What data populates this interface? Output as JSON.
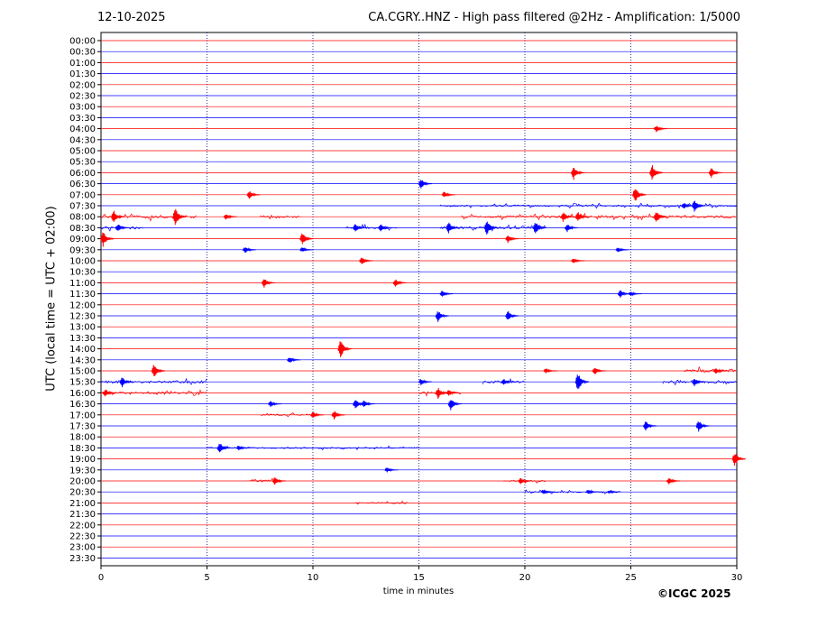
{
  "header": {
    "date": "12-10-2025",
    "title": "CA.CGRY..HNZ - High pass filtered @2Hz - Amplification: 1/5000"
  },
  "footer": {
    "copyright": "©ICGC 2025"
  },
  "colors": {
    "red": "#ff0000",
    "blue": "#0000ff",
    "grid": "#000080"
  },
  "chart_data": {
    "type": "line",
    "title": "CA.CGRY..HNZ - High pass filtered @2Hz - Amplification: 1/5000",
    "xlabel": "time in minutes",
    "ylabel": "UTC (local time = UTC + 02:00)",
    "xlim": [
      0,
      30
    ],
    "xticks": [
      0,
      5,
      10,
      15,
      20,
      25,
      30
    ],
    "vertical_gridlines_dotted_at": [
      5,
      10,
      15,
      20,
      25
    ],
    "trace_colors_alternate": [
      "red",
      "blue"
    ],
    "rows": [
      "00:00",
      "00:30",
      "01:00",
      "01:30",
      "02:00",
      "02:30",
      "03:00",
      "03:30",
      "04:00",
      "04:30",
      "05:00",
      "05:30",
      "06:00",
      "06:30",
      "07:00",
      "07:30",
      "08:00",
      "08:30",
      "09:00",
      "09:30",
      "10:00",
      "10:30",
      "11:00",
      "11:30",
      "12:00",
      "12:30",
      "13:00",
      "13:30",
      "14:00",
      "14:30",
      "15:00",
      "15:30",
      "16:00",
      "16:30",
      "17:00",
      "17:30",
      "18:00",
      "18:30",
      "19:00",
      "19:30",
      "20:00",
      "20:30",
      "21:00",
      "21:30",
      "22:00",
      "22:30",
      "23:00",
      "23:30"
    ],
    "events": [
      {
        "row": "04:00",
        "t": 26.2,
        "amp": 4
      },
      {
        "row": "06:00",
        "t": 22.3,
        "amp": 8
      },
      {
        "row": "06:00",
        "t": 26.0,
        "amp": 10
      },
      {
        "row": "06:00",
        "t": 28.8,
        "amp": 6
      },
      {
        "row": "06:30",
        "t": 15.1,
        "amp": 6
      },
      {
        "row": "07:00",
        "t": 7.0,
        "amp": 5
      },
      {
        "row": "07:00",
        "t": 16.2,
        "amp": 4
      },
      {
        "row": "07:00",
        "t": 25.2,
        "amp": 10
      },
      {
        "row": "07:30",
        "t": 27.5,
        "amp": 4
      },
      {
        "row": "07:30",
        "t": 28.0,
        "amp": 8
      },
      {
        "row": "08:00",
        "t": 0.6,
        "amp": 8
      },
      {
        "row": "08:00",
        "t": 3.5,
        "amp": 12
      },
      {
        "row": "08:00",
        "t": 5.9,
        "amp": 4
      },
      {
        "row": "08:00",
        "t": 21.8,
        "amp": 6
      },
      {
        "row": "08:00",
        "t": 22.5,
        "amp": 6
      },
      {
        "row": "08:00",
        "t": 26.2,
        "amp": 8
      },
      {
        "row": "08:30",
        "t": 0.8,
        "amp": 5
      },
      {
        "row": "08:30",
        "t": 12.0,
        "amp": 5
      },
      {
        "row": "08:30",
        "t": 13.2,
        "amp": 5
      },
      {
        "row": "08:30",
        "t": 16.4,
        "amp": 7
      },
      {
        "row": "08:30",
        "t": 18.2,
        "amp": 10
      },
      {
        "row": "08:30",
        "t": 20.5,
        "amp": 8
      },
      {
        "row": "08:30",
        "t": 22.0,
        "amp": 5
      },
      {
        "row": "09:00",
        "t": 0.1,
        "amp": 9
      },
      {
        "row": "09:00",
        "t": 9.5,
        "amp": 8
      },
      {
        "row": "09:00",
        "t": 19.2,
        "amp": 5
      },
      {
        "row": "09:30",
        "t": 6.8,
        "amp": 4
      },
      {
        "row": "09:30",
        "t": 9.5,
        "amp": 3
      },
      {
        "row": "09:30",
        "t": 24.4,
        "amp": 3
      },
      {
        "row": "10:00",
        "t": 12.3,
        "amp": 5
      },
      {
        "row": "10:00",
        "t": 22.3,
        "amp": 3
      },
      {
        "row": "11:00",
        "t": 7.7,
        "amp": 6
      },
      {
        "row": "11:00",
        "t": 13.9,
        "amp": 5
      },
      {
        "row": "11:30",
        "t": 16.1,
        "amp": 4
      },
      {
        "row": "11:30",
        "t": 24.5,
        "amp": 5
      },
      {
        "row": "11:30",
        "t": 25.0,
        "amp": 3
      },
      {
        "row": "12:30",
        "t": 15.9,
        "amp": 7
      },
      {
        "row": "12:30",
        "t": 19.2,
        "amp": 6
      },
      {
        "row": "14:00",
        "t": 11.3,
        "amp": 11
      },
      {
        "row": "14:30",
        "t": 8.9,
        "amp": 4
      },
      {
        "row": "15:00",
        "t": 2.5,
        "amp": 9
      },
      {
        "row": "15:00",
        "t": 21.0,
        "amp": 3
      },
      {
        "row": "15:00",
        "t": 23.3,
        "amp": 5
      },
      {
        "row": "15:00",
        "t": 29.0,
        "amp": 4
      },
      {
        "row": "15:30",
        "t": 1.0,
        "amp": 6
      },
      {
        "row": "15:30",
        "t": 15.1,
        "amp": 4
      },
      {
        "row": "15:30",
        "t": 19.0,
        "amp": 4
      },
      {
        "row": "15:30",
        "t": 22.5,
        "amp": 12
      },
      {
        "row": "15:30",
        "t": 28.0,
        "amp": 5
      },
      {
        "row": "16:00",
        "t": 0.2,
        "amp": 5
      },
      {
        "row": "16:00",
        "t": 15.9,
        "amp": 7
      },
      {
        "row": "16:00",
        "t": 16.4,
        "amp": 4
      },
      {
        "row": "16:30",
        "t": 8.0,
        "amp": 4
      },
      {
        "row": "16:30",
        "t": 12.0,
        "amp": 6
      },
      {
        "row": "16:30",
        "t": 12.4,
        "amp": 5
      },
      {
        "row": "16:30",
        "t": 16.5,
        "amp": 7
      },
      {
        "row": "17:00",
        "t": 10.0,
        "amp": 4
      },
      {
        "row": "17:00",
        "t": 11.0,
        "amp": 5
      },
      {
        "row": "17:30",
        "t": 25.7,
        "amp": 6
      },
      {
        "row": "17:30",
        "t": 28.2,
        "amp": 7
      },
      {
        "row": "18:30",
        "t": 5.6,
        "amp": 7
      },
      {
        "row": "18:30",
        "t": 6.5,
        "amp": 3
      },
      {
        "row": "19:00",
        "t": 29.9,
        "amp": 9
      },
      {
        "row": "19:30",
        "t": 13.5,
        "amp": 3
      },
      {
        "row": "20:00",
        "t": 8.2,
        "amp": 5
      },
      {
        "row": "20:00",
        "t": 19.8,
        "amp": 4
      },
      {
        "row": "20:00",
        "t": 26.8,
        "amp": 4
      },
      {
        "row": "20:30",
        "t": 20.9,
        "amp": 3
      },
      {
        "row": "20:30",
        "t": 23.0,
        "amp": 3
      },
      {
        "row": "20:30",
        "t": 24.0,
        "amp": 2
      }
    ],
    "noisy_segments": [
      {
        "row": "07:30",
        "from": 16,
        "to": 30,
        "amp": 1.5
      },
      {
        "row": "08:00",
        "from": 0,
        "to": 4.5,
        "amp": 2.5
      },
      {
        "row": "08:00",
        "from": 7.5,
        "to": 9.5,
        "amp": 1.5
      },
      {
        "row": "08:00",
        "from": 17,
        "to": 30,
        "amp": 2
      },
      {
        "row": "08:30",
        "from": 0,
        "to": 2,
        "amp": 2.5
      },
      {
        "row": "08:30",
        "from": 11.5,
        "to": 14,
        "amp": 2
      },
      {
        "row": "08:30",
        "from": 16,
        "to": 21,
        "amp": 2
      },
      {
        "row": "15:00",
        "from": 27.5,
        "to": 30,
        "amp": 2.5
      },
      {
        "row": "15:30",
        "from": 0,
        "to": 5,
        "amp": 2.5
      },
      {
        "row": "15:30",
        "from": 18,
        "to": 20,
        "amp": 2
      },
      {
        "row": "15:30",
        "from": 26.5,
        "to": 30,
        "amp": 2.5
      },
      {
        "row": "16:00",
        "from": 0,
        "to": 5,
        "amp": 1.8
      },
      {
        "row": "16:00",
        "from": 15,
        "to": 17,
        "amp": 2
      },
      {
        "row": "17:00",
        "from": 7.5,
        "to": 10,
        "amp": 1.5
      },
      {
        "row": "18:30",
        "from": 5,
        "to": 15,
        "amp": 1.2
      },
      {
        "row": "20:00",
        "from": 7,
        "to": 8.5,
        "amp": 2
      },
      {
        "row": "20:00",
        "from": 19,
        "to": 21,
        "amp": 1.5
      },
      {
        "row": "20:30",
        "from": 20,
        "to": 24.5,
        "amp": 1.2
      },
      {
        "row": "21:00",
        "from": 12,
        "to": 14.5,
        "amp": 1.2
      }
    ]
  }
}
